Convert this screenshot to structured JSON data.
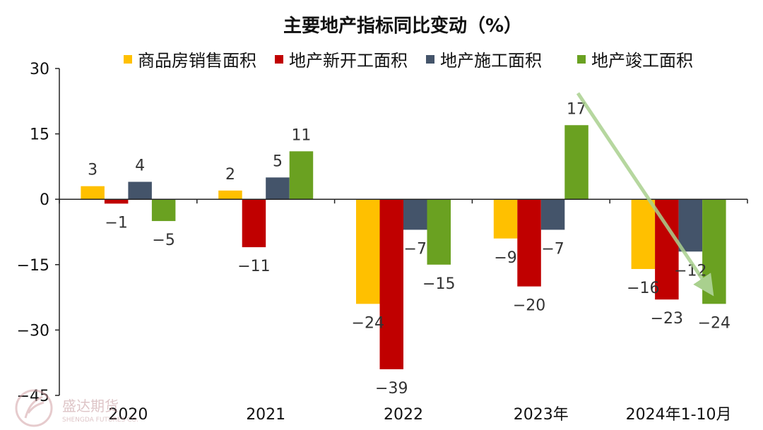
{
  "chart_data": {
    "type": "bar",
    "title": "主要地产指标同比变动（%）",
    "categories": [
      "2020",
      "2021",
      "2022",
      "2023年",
      "2024年1-10月"
    ],
    "series": [
      {
        "name": "商品房销售面积",
        "color": "#FFC000",
        "values": [
          3,
          2,
          -24,
          -9,
          -16
        ],
        "labels": [
          "3",
          "2",
          "−24",
          "−9",
          "−16"
        ]
      },
      {
        "name": "地产新开工面积",
        "color": "#C00000",
        "values": [
          -1,
          -11,
          -39,
          -20,
          -23
        ],
        "labels": [
          "−1",
          "−11",
          "−39",
          "−20",
          "−23"
        ]
      },
      {
        "name": "地产施工面积",
        "color": "#44546A",
        "values": [
          4,
          5,
          -7,
          -7,
          -12
        ],
        "labels": [
          "4",
          "5",
          "−7",
          "−7",
          "−12"
        ]
      },
      {
        "name": "地产竣工面积",
        "color": "#6AA121",
        "values": [
          -5,
          11,
          -15,
          17,
          -24
        ],
        "labels": [
          "−5",
          "11",
          "−15",
          "17",
          "−24"
        ]
      }
    ],
    "ylim": [
      -45,
      30
    ],
    "yticks": [
      30,
      15,
      0,
      -15,
      -30,
      -45
    ],
    "ytick_labels": [
      "30",
      "15",
      "0",
      "−15",
      "−30",
      "−45"
    ],
    "legend_position": "top",
    "grid": false,
    "annotation": {
      "type": "trend-arrow",
      "color": "#A9D08E",
      "direction": "down"
    }
  },
  "watermark": {
    "text": "盛达期货",
    "subtext": "SHENGDA FUTURES CO."
  }
}
